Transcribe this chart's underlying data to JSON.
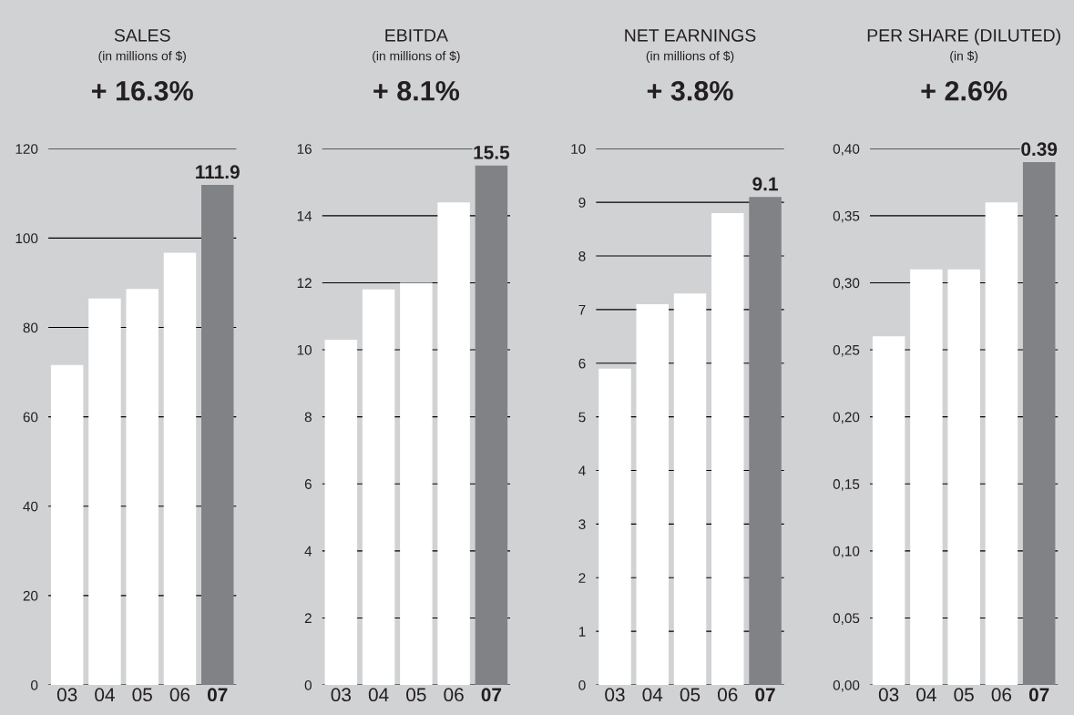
{
  "chart_data": [
    {
      "type": "bar",
      "title": "SALES",
      "subtitle": "(in millions of $)",
      "annotations": [
        "+ 16.3%"
      ],
      "categories": [
        "03",
        "04",
        "05",
        "06",
        "07"
      ],
      "values": [
        71.6,
        86.5,
        88.6,
        96.7,
        111.9
      ],
      "colors": [
        "#ffffff",
        "#ffffff",
        "#ffffff",
        "#ffffff",
        "#808285"
      ],
      "value_labels": [
        null,
        null,
        null,
        null,
        "111.9"
      ],
      "ylim": [
        0,
        120
      ],
      "yticks": [
        0,
        20,
        40,
        60,
        80,
        100,
        120
      ],
      "grid": "y",
      "legend": false
    },
    {
      "type": "bar",
      "title": "EBITDA",
      "subtitle": "(in millions of $)",
      "annotations": [
        "+ 8.1%"
      ],
      "categories": [
        "03",
        "04",
        "05",
        "06",
        "07"
      ],
      "values": [
        10.3,
        11.8,
        12.0,
        14.4,
        15.5
      ],
      "colors": [
        "#ffffff",
        "#ffffff",
        "#ffffff",
        "#ffffff",
        "#808285"
      ],
      "value_labels": [
        null,
        null,
        null,
        null,
        "15.5"
      ],
      "ylim": [
        0,
        16
      ],
      "yticks": [
        0,
        2,
        4,
        6,
        8,
        10,
        12,
        14,
        16
      ],
      "grid": "y",
      "legend": false
    },
    {
      "type": "bar",
      "title": "NET EARNINGS",
      "subtitle": "(in millions of $)",
      "annotations": [
        "+ 3.8%"
      ],
      "categories": [
        "03",
        "04",
        "05",
        "06",
        "07"
      ],
      "values": [
        5.9,
        7.1,
        7.3,
        8.8,
        9.1
      ],
      "colors": [
        "#ffffff",
        "#ffffff",
        "#ffffff",
        "#ffffff",
        "#808285"
      ],
      "value_labels": [
        null,
        null,
        null,
        null,
        "9.1"
      ],
      "ylim": [
        0,
        10
      ],
      "yticks": [
        0,
        1,
        2,
        3,
        4,
        5,
        6,
        7,
        8,
        9,
        10
      ],
      "grid": "y",
      "legend": false
    },
    {
      "type": "bar",
      "title": "PER SHARE (DILUTED)",
      "subtitle": "(in $)",
      "annotations": [
        "+ 2.6%"
      ],
      "categories": [
        "03",
        "04",
        "05",
        "06",
        "07"
      ],
      "values": [
        0.26,
        0.31,
        0.31,
        0.36,
        0.39
      ],
      "colors": [
        "#ffffff",
        "#ffffff",
        "#ffffff",
        "#ffffff",
        "#808285"
      ],
      "value_labels": [
        null,
        null,
        null,
        null,
        "0.39"
      ],
      "ylim": [
        0,
        0.4
      ],
      "yticks": [
        {
          "value": 0,
          "label": "0,00"
        },
        {
          "value": 0.05,
          "label": "0,05"
        },
        {
          "value": 0.1,
          "label": "0,10"
        },
        {
          "value": 0.15,
          "label": "0,15"
        },
        {
          "value": 0.2,
          "label": "0,20"
        },
        {
          "value": 0.25,
          "label": "0,25"
        },
        {
          "value": 0.3,
          "label": "0,30"
        },
        {
          "value": 0.35,
          "label": "0,35"
        },
        {
          "value": 0.4,
          "label": "0,40"
        }
      ],
      "grid": "y",
      "legend": false
    }
  ]
}
